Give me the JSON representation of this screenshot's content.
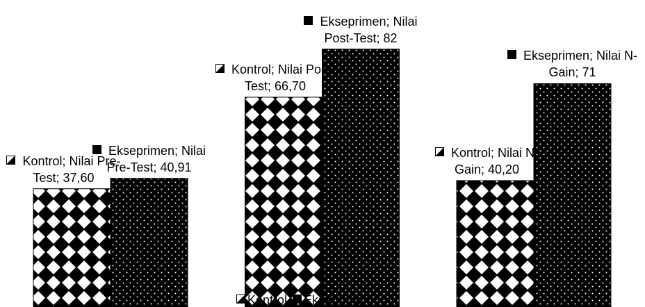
{
  "chart_data": {
    "type": "bar",
    "categories": [
      "Nilai Pre-Test",
      "Nilai Post-Test",
      "Nilai N-Gain"
    ],
    "series": [
      {
        "name": "Kontrol",
        "color": "#000000",
        "pattern": "diamond",
        "values": [
          37.6,
          66.7,
          40.2
        ],
        "value_labels": [
          "Kontrol; Nilai Pre-Test; 37,60",
          "Kontrol; Nilai Post-Test; 66,70",
          "Kontrol; Nilai N-Gain; 40,20"
        ]
      },
      {
        "name": "Ekseprimen",
        "color": "#000000",
        "pattern": "dots",
        "values": [
          40.91,
          82,
          71
        ],
        "value_labels": [
          "Ekseprimen; Nilai Pre-Test; 40,91",
          "Ekseprimen; Nilai Post-Test; 82",
          "Ekseprimen; Nilai N-Gain; 71"
        ]
      }
    ],
    "ylim": [
      0,
      97.6
    ],
    "legend": "bottom"
  }
}
